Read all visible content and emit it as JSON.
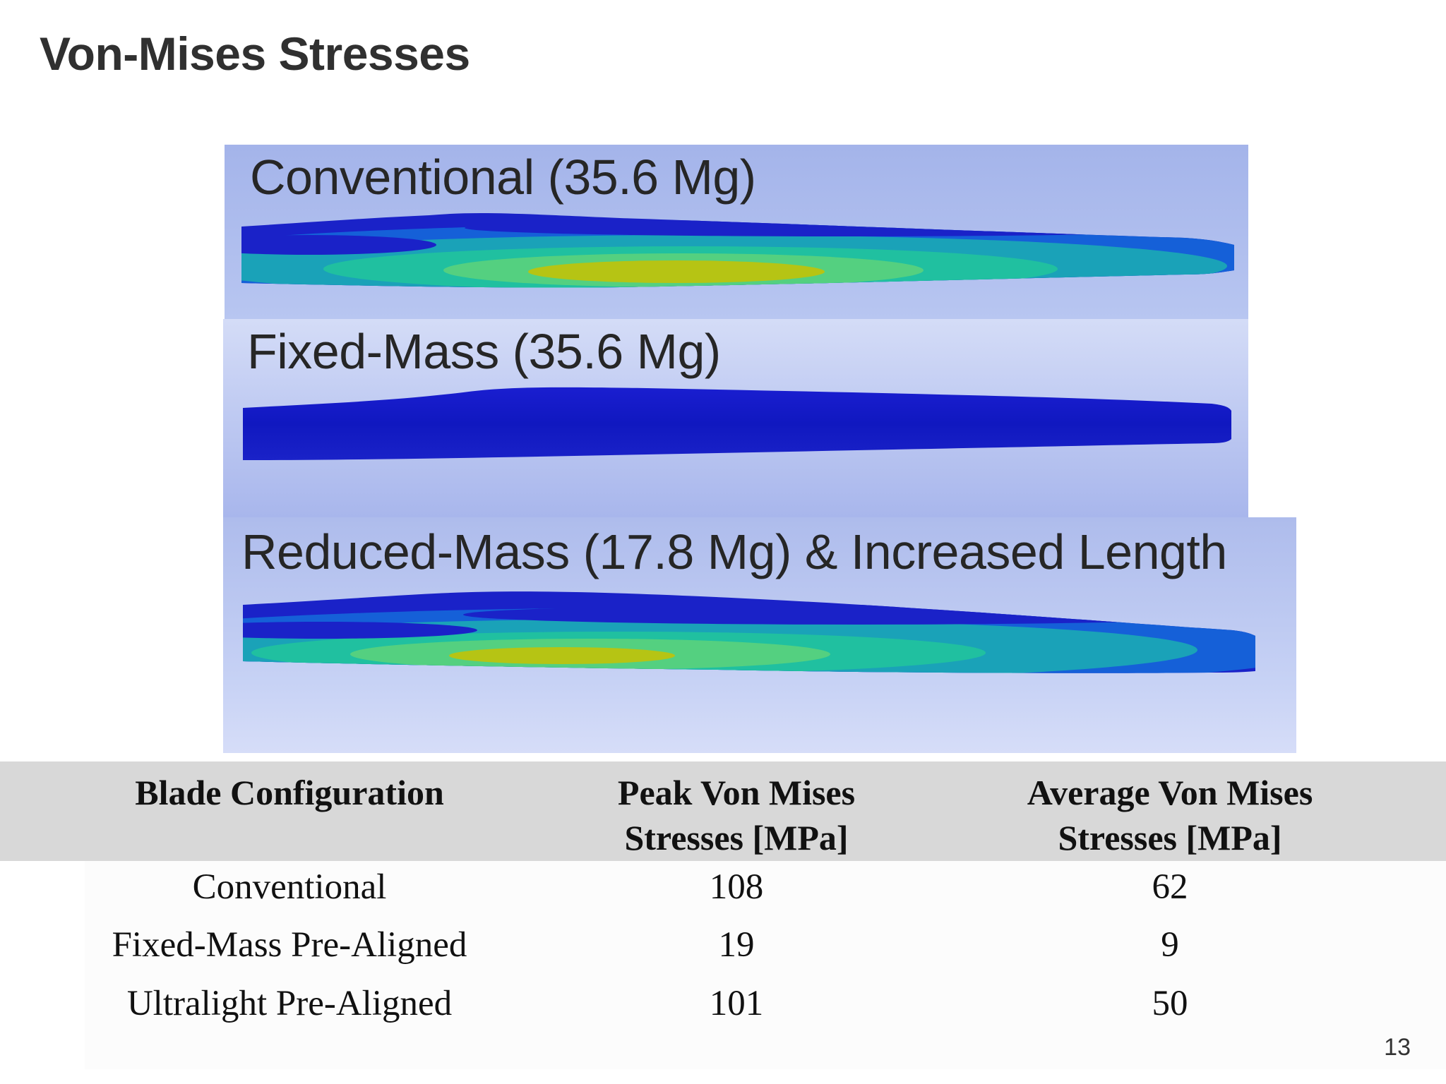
{
  "slide": {
    "title": "Von-Mises Stresses",
    "page_number": "13"
  },
  "panels": [
    {
      "label": "Conventional (35.6 Mg)",
      "stress_pattern": "high"
    },
    {
      "label": "Fixed-Mass (35.6 Mg)",
      "stress_pattern": "low"
    },
    {
      "label": "Reduced-Mass (17.8 Mg) & Increased Length",
      "stress_pattern": "high"
    }
  ],
  "table": {
    "headers": [
      [
        "Blade Configuration"
      ],
      [
        "Peak Von Mises",
        "Stresses [MPa]"
      ],
      [
        "Average Von Mises",
        "Stresses [MPa]"
      ]
    ],
    "rows": [
      [
        "Conventional",
        "108",
        "62"
      ],
      [
        "Fixed-Mass Pre-Aligned",
        "19",
        "9"
      ],
      [
        "Ultralight Pre-Aligned",
        "101",
        "50"
      ]
    ]
  },
  "colors": {
    "low_stress": "#1a22c8",
    "mid_stress": "#1aa2b8",
    "high_stress": "#b6c414"
  }
}
